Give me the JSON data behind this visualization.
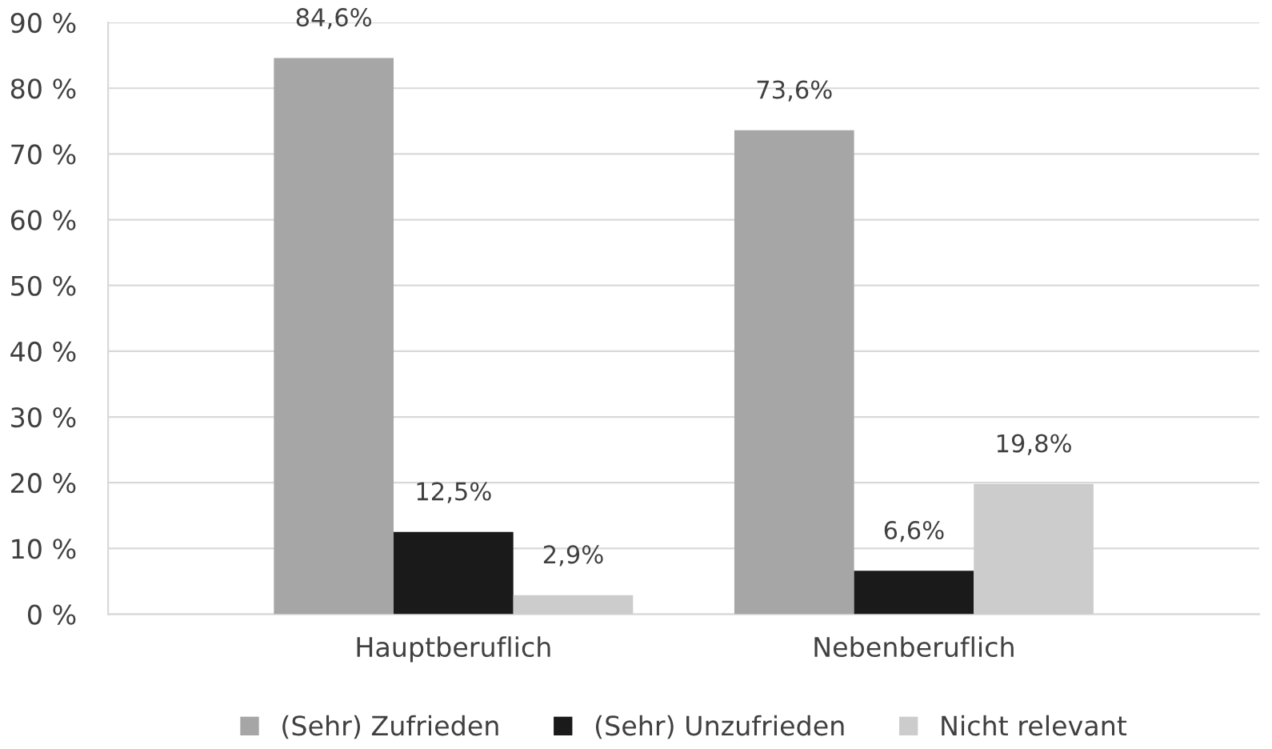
{
  "chart_data": {
    "type": "bar",
    "categories": [
      "Hauptberuflich",
      "Nebenberuflich"
    ],
    "series": [
      {
        "name": "(Sehr) Zufrieden",
        "color": "#a6a6a6",
        "values": [
          84.6,
          73.6
        ],
        "value_labels": [
          "84,6%",
          "73,6%"
        ]
      },
      {
        "name": "(Sehr) Unzufrieden",
        "color": "#1a1a1a",
        "values": [
          12.5,
          6.6
        ],
        "value_labels": [
          "12,5%",
          "6,6%"
        ]
      },
      {
        "name": "Nicht relevant",
        "color": "#cccccc",
        "values": [
          2.9,
          19.8
        ],
        "value_labels": [
          "2,9%",
          "19,8%"
        ]
      }
    ],
    "ylim": [
      0,
      90
    ],
    "yticks": [
      {
        "value": 0,
        "label": "0 %"
      },
      {
        "value": 10,
        "label": "10 %"
      },
      {
        "value": 20,
        "label": "20 %"
      },
      {
        "value": 30,
        "label": "30 %"
      },
      {
        "value": 40,
        "label": "40 %"
      },
      {
        "value": 50,
        "label": "50 %"
      },
      {
        "value": 60,
        "label": "60 %"
      },
      {
        "value": 70,
        "label": "70 %"
      },
      {
        "value": 80,
        "label": "80 %"
      },
      {
        "value": 90,
        "label": "90 %"
      }
    ],
    "grid": "y",
    "legend": "bottom"
  }
}
